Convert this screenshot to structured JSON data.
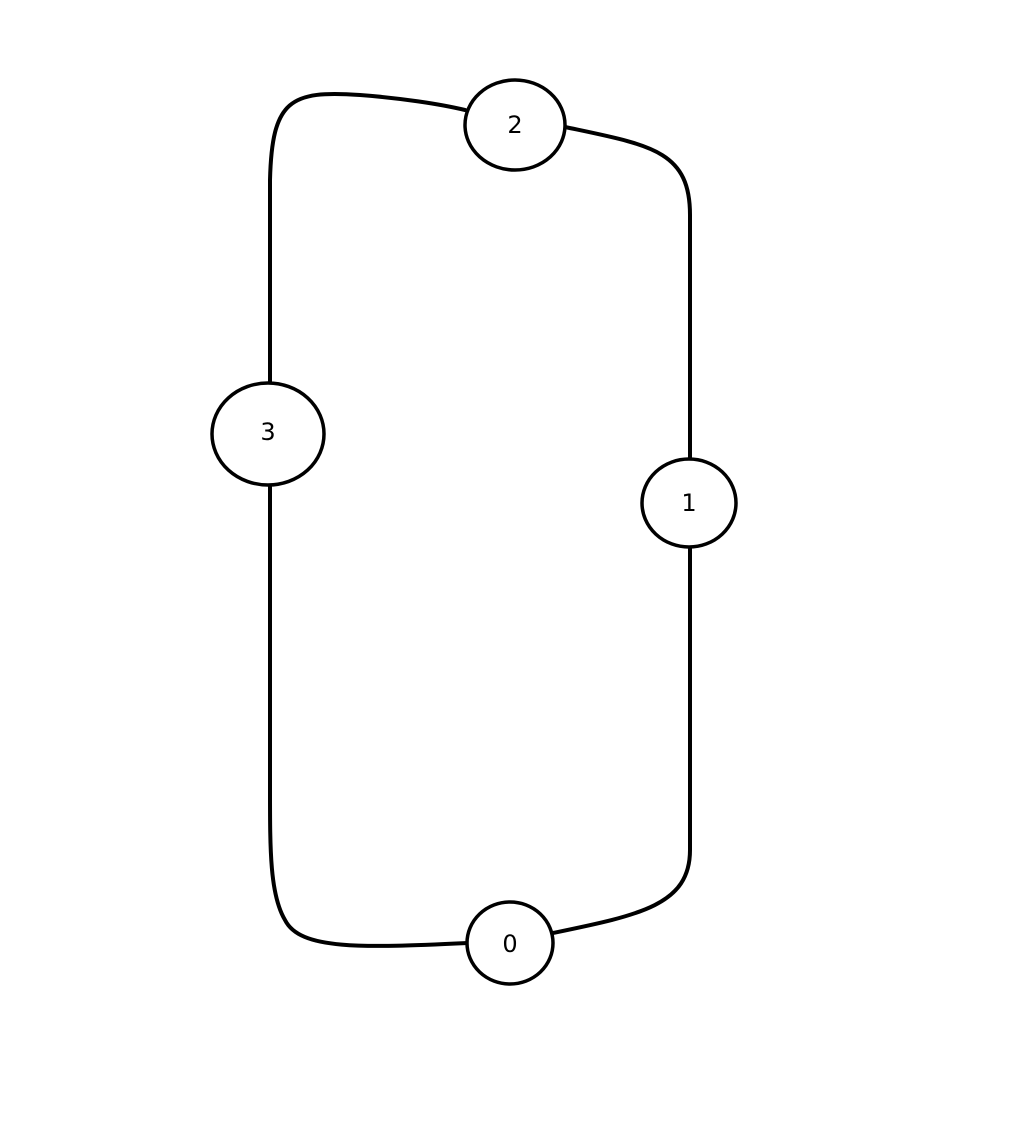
{
  "graph": {
    "nodes": [
      {
        "id": "n0",
        "label": "0"
      },
      {
        "id": "n1",
        "label": "1"
      },
      {
        "id": "n2",
        "label": "2"
      },
      {
        "id": "n3",
        "label": "3"
      }
    ],
    "edges": [
      {
        "from": "2",
        "to": "1"
      },
      {
        "from": "1",
        "to": "0"
      },
      {
        "from": "0",
        "to": "3"
      },
      {
        "from": "3",
        "to": "2"
      }
    ]
  },
  "colors": {
    "stroke": "#000000",
    "background": "#ffffff"
  }
}
